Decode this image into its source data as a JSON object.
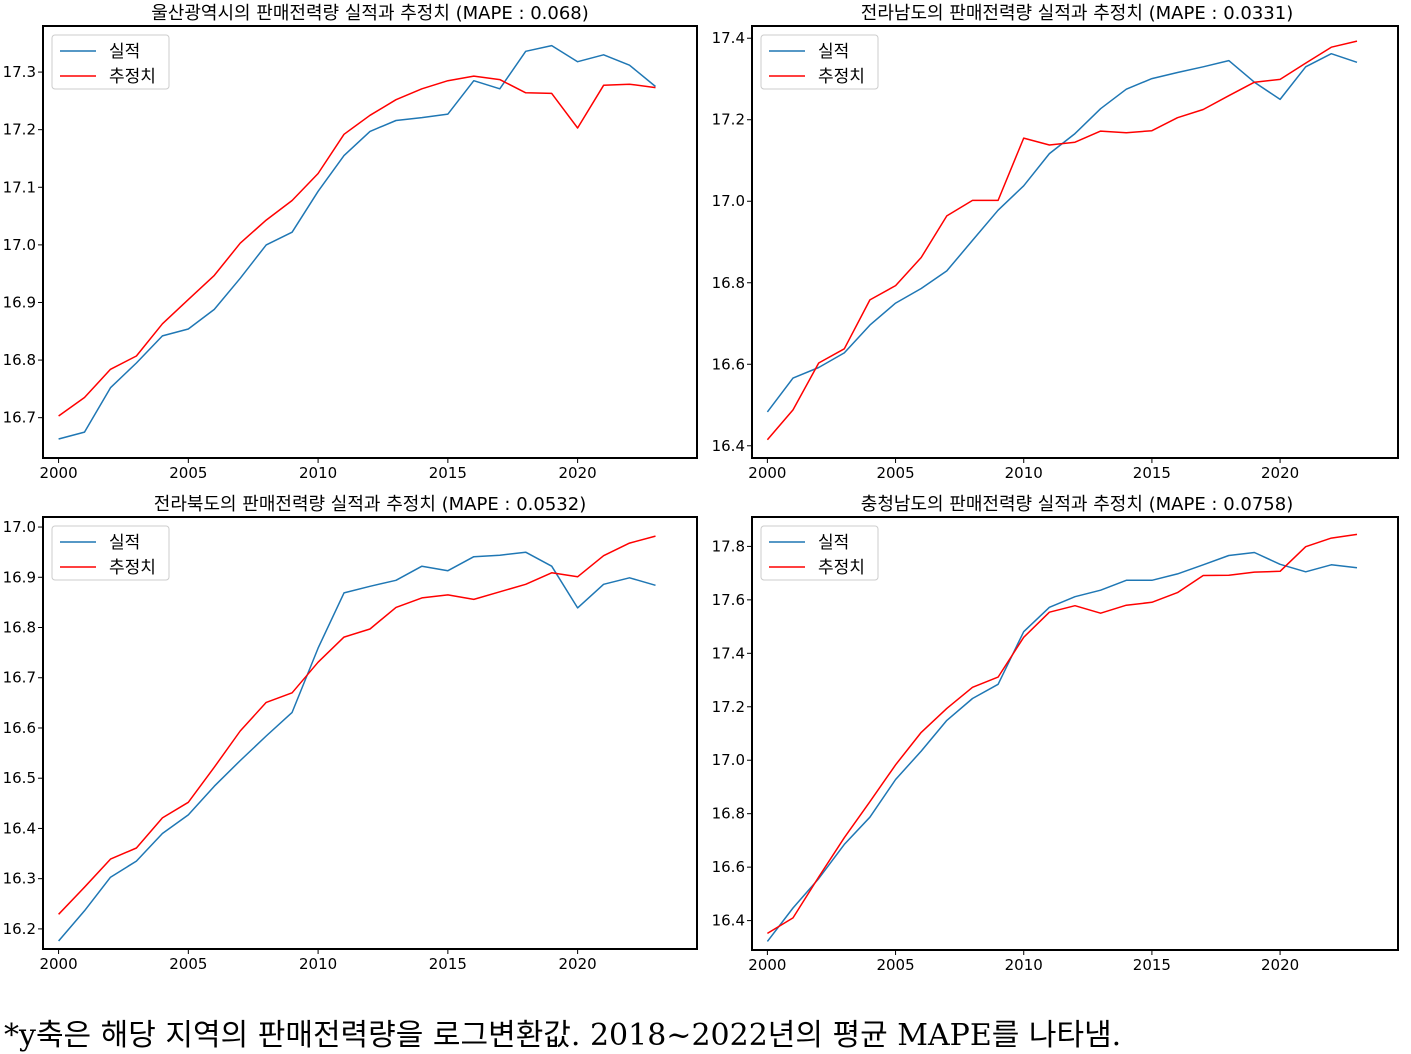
{
  "footnote": "*y축은 해당 지역의 판매전력량을 로그변환값. 2018~2022년의 평균 MAPE를 나타냄.",
  "colors": {
    "actual": "#1f77b4",
    "estimate": "#ff0000"
  },
  "chart_data": [
    {
      "type": "line",
      "title": "울산광역시의 판매전력량 실적과 추정치 (MAPE : 0.068)",
      "x": [
        2000,
        2001,
        2002,
        2003,
        2004,
        2005,
        2006,
        2007,
        2008,
        2009,
        2010,
        2011,
        2012,
        2013,
        2014,
        2015,
        2016,
        2017,
        2018,
        2019,
        2020,
        2021,
        2022,
        2023
      ],
      "xticks": [
        2000,
        2005,
        2010,
        2015,
        2020
      ],
      "xlim": [
        1999.4,
        2024.6
      ],
      "ylim": [
        16.63,
        17.38
      ],
      "yticks": [
        16.7,
        16.8,
        16.9,
        17.0,
        17.1,
        17.2,
        17.3
      ],
      "ytick_labels": [
        "16.7",
        "16.8",
        "16.9",
        "17.0",
        "17.1",
        "17.2",
        "17.3"
      ],
      "legend": "top-left",
      "series": [
        {
          "name": "실적",
          "values": [
            16.663,
            16.675,
            16.752,
            16.795,
            16.842,
            16.854,
            16.888,
            16.942,
            17.0,
            17.022,
            17.093,
            17.155,
            17.197,
            17.216,
            17.221,
            17.227,
            17.285,
            17.271,
            17.336,
            17.346,
            17.318,
            17.33,
            17.312,
            17.275
          ]
        },
        {
          "name": "추정치",
          "values": [
            16.703,
            16.735,
            16.784,
            16.807,
            16.863,
            16.905,
            16.947,
            17.003,
            17.043,
            17.077,
            17.124,
            17.192,
            17.225,
            17.252,
            17.271,
            17.285,
            17.293,
            17.287,
            17.264,
            17.263,
            17.203,
            17.277,
            17.279,
            17.273
          ]
        }
      ]
    },
    {
      "type": "line",
      "title": "전라남도의 판매전력량 실적과 추정치 (MAPE : 0.0331)",
      "x": [
        2000,
        2001,
        2002,
        2003,
        2004,
        2005,
        2006,
        2007,
        2008,
        2009,
        2010,
        2011,
        2012,
        2013,
        2014,
        2015,
        2016,
        2017,
        2018,
        2019,
        2020,
        2021,
        2022,
        2023
      ],
      "xticks": [
        2000,
        2005,
        2010,
        2015,
        2020
      ],
      "xlim": [
        1999.4,
        2024.6
      ],
      "ylim": [
        16.37,
        17.43
      ],
      "yticks": [
        16.4,
        16.6,
        16.8,
        17.0,
        17.2,
        17.4
      ],
      "ytick_labels": [
        "16.4",
        "16.6",
        "16.8",
        "17.0",
        "17.2",
        "17.4"
      ],
      "legend": "top-left",
      "series": [
        {
          "name": "실적",
          "values": [
            16.483,
            16.566,
            16.592,
            16.628,
            16.696,
            16.75,
            16.786,
            16.829,
            16.904,
            16.978,
            17.038,
            17.117,
            17.166,
            17.227,
            17.275,
            17.301,
            17.316,
            17.33,
            17.345,
            17.292,
            17.25,
            17.33,
            17.362,
            17.341
          ]
        },
        {
          "name": "추정치",
          "values": [
            16.415,
            16.488,
            16.603,
            16.638,
            16.758,
            16.793,
            16.862,
            16.964,
            17.002,
            17.002,
            17.155,
            17.138,
            17.145,
            17.172,
            17.168,
            17.173,
            17.205,
            17.225,
            17.259,
            17.292,
            17.299,
            17.339,
            17.378,
            17.393
          ]
        }
      ]
    },
    {
      "type": "line",
      "title": "전라북도의 판매전력량 실적과 추정치 (MAPE : 0.0532)",
      "x": [
        2000,
        2001,
        2002,
        2003,
        2004,
        2005,
        2006,
        2007,
        2008,
        2009,
        2010,
        2011,
        2012,
        2013,
        2014,
        2015,
        2016,
        2017,
        2018,
        2019,
        2020,
        2021,
        2022,
        2023
      ],
      "xticks": [
        2000,
        2005,
        2010,
        2015,
        2020
      ],
      "xlim": [
        1999.4,
        2024.6
      ],
      "ylim": [
        16.16,
        17.02
      ],
      "yticks": [
        16.2,
        16.3,
        16.4,
        16.5,
        16.6,
        16.7,
        16.8,
        16.9,
        17.0
      ],
      "ytick_labels": [
        "16.2",
        "16.3",
        "16.4",
        "16.5",
        "16.6",
        "16.7",
        "16.8",
        "16.9",
        "17.0"
      ],
      "legend": "top-left",
      "series": [
        {
          "name": "실적",
          "values": [
            16.176,
            16.236,
            16.303,
            16.335,
            16.39,
            16.427,
            16.484,
            16.535,
            16.584,
            16.631,
            16.759,
            16.869,
            16.882,
            16.894,
            16.922,
            16.913,
            16.941,
            16.944,
            16.95,
            16.922,
            16.839,
            16.886,
            16.899,
            16.884
          ]
        },
        {
          "name": "추정치",
          "values": [
            16.229,
            16.283,
            16.339,
            16.361,
            16.421,
            16.452,
            16.522,
            16.594,
            16.651,
            16.67,
            16.731,
            16.781,
            16.797,
            16.84,
            16.859,
            16.865,
            16.856,
            16.871,
            16.886,
            16.909,
            16.901,
            16.943,
            16.968,
            16.982
          ]
        }
      ]
    },
    {
      "type": "line",
      "title": "충청남도의 판매전력량 실적과 추정치 (MAPE : 0.0758)",
      "x": [
        2000,
        2001,
        2002,
        2003,
        2004,
        2005,
        2006,
        2007,
        2008,
        2009,
        2010,
        2011,
        2012,
        2013,
        2014,
        2015,
        2016,
        2017,
        2018,
        2019,
        2020,
        2021,
        2022,
        2023
      ],
      "xticks": [
        2000,
        2005,
        2010,
        2015,
        2020
      ],
      "xlim": [
        1999.4,
        2024.6
      ],
      "ylim": [
        16.29,
        17.91
      ],
      "yticks": [
        16.4,
        16.6,
        16.8,
        17.0,
        17.2,
        17.4,
        17.6,
        17.8
      ],
      "ytick_labels": [
        "16.4",
        "16.6",
        "16.8",
        "17.0",
        "17.2",
        "17.4",
        "17.6",
        "17.8"
      ],
      "legend": "top-left",
      "series": [
        {
          "name": "실적",
          "values": [
            16.322,
            16.447,
            16.557,
            16.685,
            16.787,
            16.928,
            17.034,
            17.149,
            17.231,
            17.284,
            17.481,
            17.572,
            17.612,
            17.636,
            17.673,
            17.673,
            17.697,
            17.731,
            17.766,
            17.777,
            17.733,
            17.705,
            17.731,
            17.72
          ]
        },
        {
          "name": "추정치",
          "values": [
            16.352,
            16.41,
            16.563,
            16.71,
            16.845,
            16.983,
            17.104,
            17.194,
            17.273,
            17.311,
            17.46,
            17.554,
            17.578,
            17.55,
            17.58,
            17.591,
            17.627,
            17.691,
            17.692,
            17.704,
            17.707,
            17.799,
            17.831,
            17.845
          ]
        }
      ]
    }
  ]
}
